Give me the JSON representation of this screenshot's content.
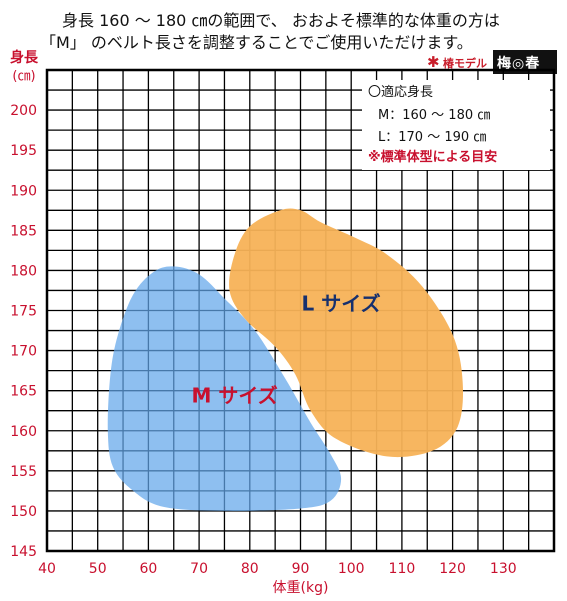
{
  "header": {
    "line1": "身長 160 ～ 180 ㎝の範囲で、 おおよそ標準的な体重の方は",
    "line2": "「M」 のベルト長さを調整することでご使用いただけます。"
  },
  "logo": {
    "left_text": "椿モデル",
    "right_text": "梅◎春",
    "icon": "star-mark-icon"
  },
  "chart_data": {
    "type": "area",
    "xlabel": "体重(kg)",
    "ylabel": "身長(㎝)",
    "xlim": [
      40,
      140
    ],
    "ylim": [
      145,
      205
    ],
    "x_ticks": [
      40,
      50,
      60,
      70,
      80,
      90,
      100,
      110,
      120,
      130
    ],
    "y_ticks": [
      145,
      150,
      155,
      160,
      165,
      170,
      175,
      180,
      185,
      190,
      195,
      200
    ],
    "grid": true,
    "series": [
      {
        "name": "L サイズ",
        "color": "#f7b257",
        "label_position": {
          "x": 98,
          "y": 175
        },
        "points": [
          [
            77,
            182
          ],
          [
            80,
            185.5
          ],
          [
            86,
            187.5
          ],
          [
            90,
            187.5
          ],
          [
            94,
            186
          ],
          [
            101,
            184
          ],
          [
            107,
            182
          ],
          [
            114,
            178
          ],
          [
            120,
            172
          ],
          [
            122,
            166
          ],
          [
            121,
            160.5
          ],
          [
            116,
            157.5
          ],
          [
            107,
            156.8
          ],
          [
            97,
            159
          ],
          [
            92,
            162.5
          ],
          [
            89,
            167
          ],
          [
            85,
            170.5
          ],
          [
            79,
            174
          ],
          [
            76,
            177.5
          ]
        ]
      },
      {
        "name": "M サイズ",
        "color": "#62a6ea",
        "label_position": {
          "x": 77,
          "y": 163.5
        },
        "points": [
          [
            65,
            180.5
          ],
          [
            70,
            179.5
          ],
          [
            75,
            176.5
          ],
          [
            81,
            172.5
          ],
          [
            87,
            166.5
          ],
          [
            92,
            161
          ],
          [
            96,
            157
          ],
          [
            98,
            154
          ],
          [
            96,
            151.3
          ],
          [
            90,
            150.3
          ],
          [
            75,
            150
          ],
          [
            63,
            150.5
          ],
          [
            57,
            152.5
          ],
          [
            53,
            155.5
          ],
          [
            52,
            160
          ],
          [
            52.5,
            167
          ],
          [
            54,
            172
          ],
          [
            57,
            177
          ],
          [
            61,
            179.8
          ]
        ]
      }
    ],
    "legend": {
      "title": "〇適応身長",
      "entries": [
        "M：160 ～ 180 ㎝",
        "L：170 ～ 190 ㎝"
      ],
      "note": "※標準体型による目安",
      "note_color": "#c8102e",
      "placement": "top-right"
    }
  }
}
